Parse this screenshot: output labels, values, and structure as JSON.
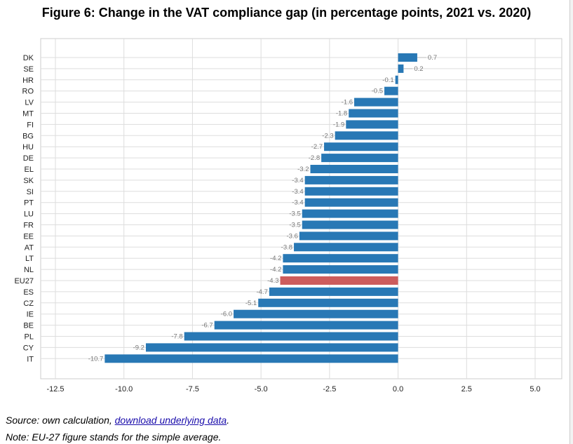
{
  "figure": {
    "title": "Figure 6: Change in the VAT compliance gap (in percentage points, 2021 vs. 2020)"
  },
  "footer": {
    "source_prefix": "Source: own calculation, ",
    "source_link_text": "download underlying data",
    "source_suffix": ".",
    "note": "Note: EU-27 figure stands for the simple average."
  },
  "chart_data": {
    "type": "bar",
    "orientation": "horizontal",
    "title": "Figure 6: Change in the VAT compliance gap (in percentage points, 2021 vs. 2020)",
    "xlabel": "",
    "ylabel": "",
    "xlim": [
      -12.5,
      5.0
    ],
    "xticks": [
      -12.5,
      -10.0,
      -7.5,
      -5.0,
      -2.5,
      0.0,
      2.5,
      5.0
    ],
    "xtick_labels": [
      "-12.5",
      "-10.0",
      "-7.5",
      "-5.0",
      "-2.5",
      "0.0",
      "2.5",
      "5.0"
    ],
    "grid": true,
    "legend": "none",
    "colors": {
      "default": "#2878b5",
      "highlight": "#cd5c5c"
    },
    "highlight_category": "EU27",
    "categories": [
      "DK",
      "SE",
      "HR",
      "RO",
      "LV",
      "MT",
      "FI",
      "BG",
      "HU",
      "DE",
      "EL",
      "SK",
      "SI",
      "PT",
      "LU",
      "FR",
      "EE",
      "AT",
      "LT",
      "NL",
      "EU27",
      "ES",
      "CZ",
      "IE",
      "BE",
      "PL",
      "CY",
      "IT"
    ],
    "values": [
      0.7,
      0.2,
      -0.1,
      -0.5,
      -1.6,
      -1.8,
      -1.9,
      -2.3,
      -2.7,
      -2.8,
      -3.2,
      -3.4,
      -3.4,
      -3.4,
      -3.5,
      -3.5,
      -3.6,
      -3.8,
      -4.2,
      -4.2,
      -4.3,
      -4.7,
      -5.1,
      -6.0,
      -6.7,
      -7.8,
      -9.2,
      -10.7
    ],
    "labels": [
      "0.7",
      "0.2",
      "-0.1",
      "-0.5",
      "-1.6",
      "-1.8",
      "-1.9",
      "-2.3",
      "-2.7",
      "-2.8",
      "-3.2",
      "-3.4",
      "-3.4",
      "-3.4",
      "-3.5",
      "-3.5",
      "-3.6",
      "-3.8",
      "-4.2",
      "-4.2",
      "-4.3",
      "-4.7",
      "-5.1",
      "-6.0",
      "-6.7",
      "-7.8",
      "-9.2",
      "-10.7"
    ]
  }
}
